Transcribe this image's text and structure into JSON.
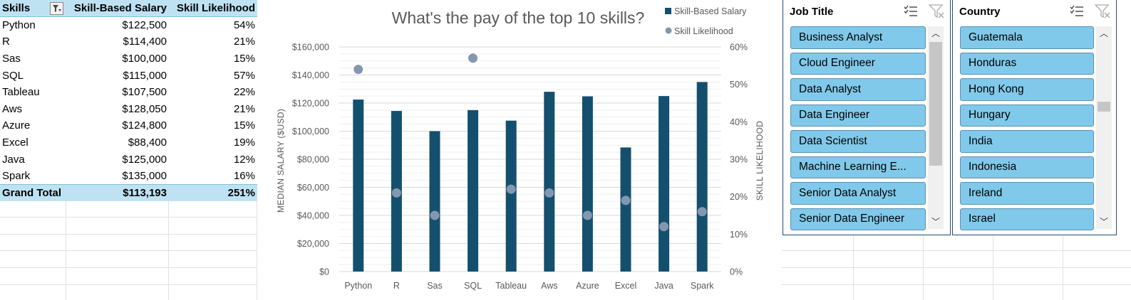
{
  "pivot": {
    "headers": {
      "skills": "Skills",
      "salary": "Skill-Based Salary",
      "likelihood": "Skill Likelihood"
    },
    "rows": [
      {
        "skill": "Python",
        "salary": "$122,500",
        "likelihood": "54%"
      },
      {
        "skill": "R",
        "salary": "$114,400",
        "likelihood": "21%"
      },
      {
        "skill": "Sas",
        "salary": "$100,000",
        "likelihood": "15%"
      },
      {
        "skill": "SQL",
        "salary": "$115,000",
        "likelihood": "57%"
      },
      {
        "skill": "Tableau",
        "salary": "$107,500",
        "likelihood": "22%"
      },
      {
        "skill": "Aws",
        "salary": "$128,050",
        "likelihood": "21%"
      },
      {
        "skill": "Azure",
        "salary": "$124,800",
        "likelihood": "15%"
      },
      {
        "skill": "Excel",
        "salary": "$88,400",
        "likelihood": "19%"
      },
      {
        "skill": "Java",
        "salary": "$125,000",
        "likelihood": "12%"
      },
      {
        "skill": "Spark",
        "salary": "$135,000",
        "likelihood": "16%"
      }
    ],
    "total": {
      "label": "Grand Total",
      "salary": "$113,193",
      "likelihood": "251%"
    }
  },
  "chart_data": {
    "type": "bar",
    "title": "What's the pay of the top 10 skills?",
    "categories": [
      "Python",
      "R",
      "Sas",
      "SQL",
      "Tableau",
      "Aws",
      "Azure",
      "Excel",
      "Java",
      "Spark"
    ],
    "series": [
      {
        "name": "Skill-Based Salary",
        "type": "bar",
        "axis": "primary",
        "color": "#14506e",
        "values": [
          122500,
          114400,
          100000,
          115000,
          107500,
          128050,
          124800,
          88400,
          125000,
          135000
        ]
      },
      {
        "name": "Skill Likelihood",
        "type": "scatter",
        "axis": "secondary",
        "color": "#8497b0",
        "values": [
          0.54,
          0.21,
          0.15,
          0.57,
          0.22,
          0.21,
          0.15,
          0.19,
          0.12,
          0.16
        ]
      }
    ],
    "ylabel": "MEDIAN SALARY ($USD)",
    "y2label": "SKILL LIKELIHOOD",
    "ylim": [
      0,
      160000
    ],
    "y2lim": [
      0,
      0.6
    ],
    "yticks": [
      "$0",
      "$20,000",
      "$40,000",
      "$60,000",
      "$80,000",
      "$100,000",
      "$120,000",
      "$140,000",
      "$160,000"
    ],
    "y2ticks": [
      "0%",
      "10%",
      "20%",
      "30%",
      "40%",
      "50%",
      "60%"
    ],
    "grid": true,
    "legend": "top-right"
  },
  "slicers": {
    "job_title": {
      "title": "Job Title",
      "items": [
        "Business Analyst",
        "Cloud Engineer",
        "Data Analyst",
        "Data Engineer",
        "Data Scientist",
        "Machine Learning E...",
        "Senior Data Analyst",
        "Senior Data Engineer"
      ],
      "scroll_position": 0.0,
      "visible_fraction": 0.72
    },
    "country": {
      "title": "Country",
      "items": [
        "Guatemala",
        "Honduras",
        "Hong Kong",
        "Hungary",
        "India",
        "Indonesia",
        "Ireland",
        "Israel"
      ],
      "scroll_position": 0.37,
      "visible_fraction": 0.06
    },
    "icons": {
      "multi_select": "multi-select-icon",
      "clear_filter": "clear-filter-icon"
    }
  }
}
